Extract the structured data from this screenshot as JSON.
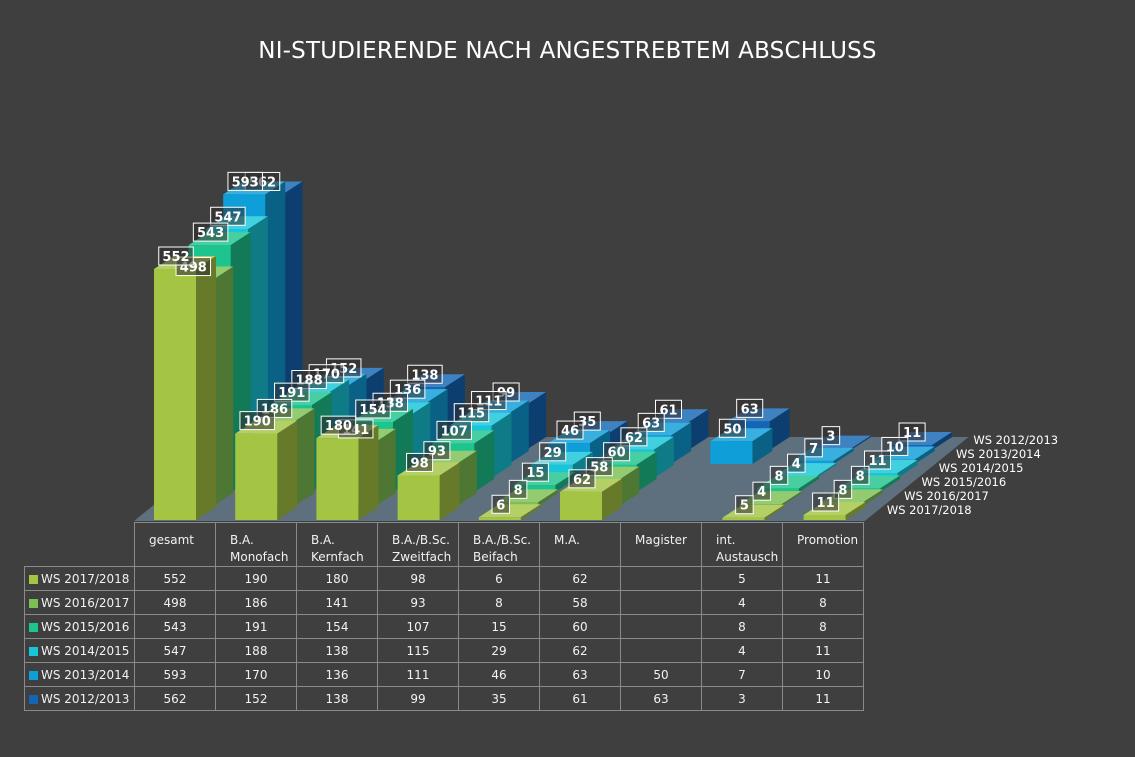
{
  "chart_data": {
    "type": "bar",
    "title": "NI-STUDIERENDE NACH ANGESTREBTEM ABSCHLUSS",
    "categories": [
      "gesamt",
      "B.A.\nMonofach",
      "B.A.\nKernfach",
      "B.A./B.Sc.\nZweitfach",
      "B.A./B.Sc.\nBeifach",
      "M.A.",
      "Magister",
      "int.\nAustausch",
      "Promotion"
    ],
    "series": [
      {
        "name": "WS 2017/2018",
        "color": "#a4c444",
        "values": [
          552,
          190,
          180,
          98,
          6,
          62,
          null,
          5,
          11
        ]
      },
      {
        "name": "WS 2016/2017",
        "color": "#7cc052",
        "values": [
          498,
          186,
          141,
          93,
          8,
          58,
          null,
          4,
          8
        ]
      },
      {
        "name": "WS 2015/2016",
        "color": "#1ec48e",
        "values": [
          543,
          191,
          154,
          107,
          15,
          60,
          null,
          8,
          8
        ]
      },
      {
        "name": "WS 2014/2015",
        "color": "#17c6d8",
        "values": [
          547,
          188,
          138,
          115,
          29,
          62,
          null,
          4,
          11
        ]
      },
      {
        "name": "WS 2013/2014",
        "color": "#0e9ed8",
        "values": [
          593,
          170,
          136,
          111,
          46,
          63,
          50,
          7,
          10
        ]
      },
      {
        "name": "WS 2012/2013",
        "color": "#1466b4",
        "values": [
          562,
          152,
          138,
          99,
          35,
          61,
          63,
          3,
          11
        ]
      }
    ],
    "legend": "data-table"
  }
}
